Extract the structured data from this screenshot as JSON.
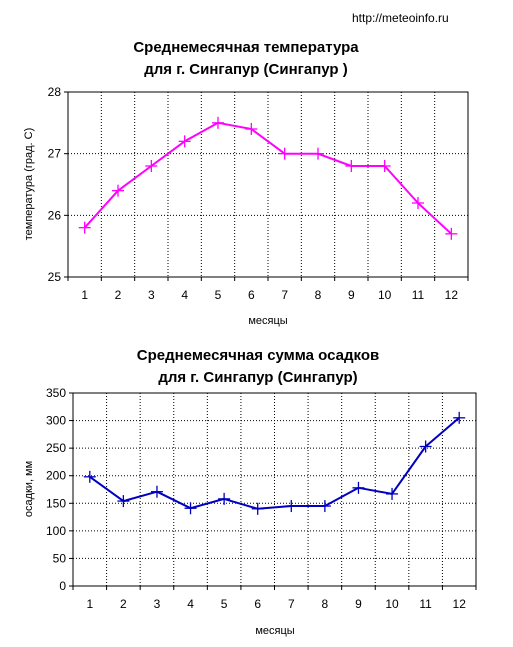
{
  "source_url": "http://meteoinfo.ru",
  "chart_data": [
    {
      "type": "line",
      "title_lines": [
        "Среднемесячная температура",
        "для г. Сингапур (Сингапур )"
      ],
      "xlabel": "месяцы",
      "ylabel": "температура (град. С)",
      "categories": [
        "1",
        "2",
        "3",
        "4",
        "5",
        "6",
        "7",
        "8",
        "9",
        "10",
        "11",
        "12"
      ],
      "values": [
        25.8,
        26.4,
        26.8,
        27.2,
        27.5,
        27.4,
        27.0,
        27.0,
        26.8,
        26.8,
        26.2,
        25.7
      ],
      "ylim": [
        25,
        28
      ],
      "yticks": [
        "25",
        "26",
        "27",
        "28"
      ],
      "grid": true,
      "color": "#ff00ff"
    },
    {
      "type": "line",
      "title_lines": [
        "Среднемесячная сумма осадков",
        "для г. Сингапур (Сингапур)"
      ],
      "xlabel": "месяцы",
      "ylabel": "осадки, мм",
      "categories": [
        "1",
        "2",
        "3",
        "4",
        "5",
        "6",
        "7",
        "8",
        "9",
        "10",
        "11",
        "12"
      ],
      "values": [
        198,
        154,
        171,
        141,
        158,
        140,
        145,
        145,
        178,
        167,
        253,
        305
      ],
      "ylim": [
        0,
        350
      ],
      "yticks": [
        "0",
        "50",
        "100",
        "150",
        "200",
        "250",
        "300",
        "350"
      ],
      "grid": true,
      "color": "#0000c0"
    }
  ]
}
